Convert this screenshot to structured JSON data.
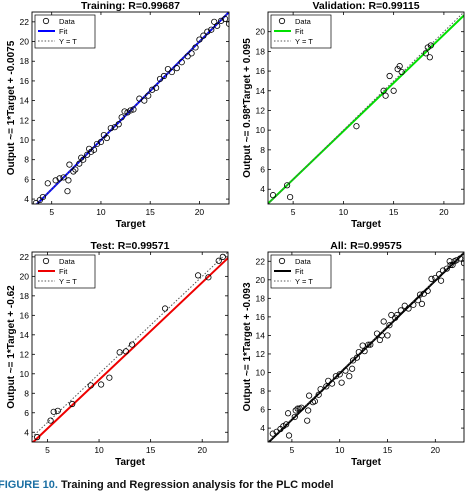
{
  "caption": {
    "label": "FIGURE 10.",
    "text": " Training and Regression analysis for the PLC model"
  },
  "chart_data": [
    {
      "type": "scatter",
      "title": "Training: R=0.99687",
      "xlabel": "Target",
      "ylabel": "Output ~= 1*Target + -0.0075",
      "xlim": [
        3,
        23
      ],
      "ylim": [
        3.5,
        23
      ],
      "xticks": [
        5,
        10,
        15,
        20
      ],
      "yticks": [
        4,
        6,
        8,
        10,
        12,
        14,
        16,
        18,
        20,
        22
      ],
      "fit": {
        "slope": 1,
        "intercept": -0.0075,
        "color": "#0000ff"
      },
      "legend": [
        "Data",
        "Fit",
        "Y = T"
      ],
      "legend_position": "top-left",
      "points": [
        [
          3.4,
          3.6
        ],
        [
          3.8,
          3.9
        ],
        [
          4.1,
          4.2
        ],
        [
          4.6,
          5.6
        ],
        [
          5.4,
          5.9
        ],
        [
          5.8,
          6.1
        ],
        [
          6.2,
          6.2
        ],
        [
          6.6,
          4.8
        ],
        [
          6.7,
          5.9
        ],
        [
          6.8,
          7.5
        ],
        [
          7.2,
          6.8
        ],
        [
          7.4,
          7.0
        ],
        [
          7.8,
          7.6
        ],
        [
          8.0,
          8.2
        ],
        [
          8.2,
          8.0
        ],
        [
          8.6,
          8.5
        ],
        [
          8.8,
          9.1
        ],
        [
          9.0,
          8.8
        ],
        [
          9.3,
          9.0
        ],
        [
          9.6,
          9.6
        ],
        [
          10.0,
          9.8
        ],
        [
          10.3,
          10.5
        ],
        [
          10.6,
          10.2
        ],
        [
          11.0,
          11.2
        ],
        [
          11.4,
          11.3
        ],
        [
          11.8,
          11.6
        ],
        [
          12.1,
          12.3
        ],
        [
          12.4,
          12.9
        ],
        [
          12.7,
          12.8
        ],
        [
          13.0,
          13.0
        ],
        [
          13.3,
          13.1
        ],
        [
          13.9,
          14.2
        ],
        [
          14.4,
          14.0
        ],
        [
          14.8,
          14.5
        ],
        [
          15.2,
          15.1
        ],
        [
          15.6,
          15.3
        ],
        [
          16.0,
          16.2
        ],
        [
          16.4,
          16.5
        ],
        [
          16.8,
          17.2
        ],
        [
          17.2,
          16.9
        ],
        [
          17.7,
          17.3
        ],
        [
          18.2,
          17.9
        ],
        [
          18.8,
          18.5
        ],
        [
          19.2,
          18.8
        ],
        [
          19.6,
          19.4
        ],
        [
          20.0,
          20.2
        ],
        [
          20.4,
          20.6
        ],
        [
          20.8,
          21.0
        ],
        [
          21.2,
          21.2
        ],
        [
          21.5,
          22.0
        ],
        [
          21.8,
          21.6
        ],
        [
          22.2,
          22.1
        ],
        [
          22.6,
          22.3
        ],
        [
          23.0,
          21.8
        ]
      ]
    },
    {
      "type": "scatter",
      "title": "Validation: R=0.99115",
      "xlabel": "Target",
      "ylabel": "Output ~= 0.98*Target + 0.095",
      "xlim": [
        2.5,
        22
      ],
      "ylim": [
        2.5,
        22
      ],
      "xticks": [
        5,
        10,
        15,
        20
      ],
      "yticks": [
        4,
        6,
        8,
        10,
        12,
        14,
        16,
        18,
        20
      ],
      "fit": {
        "slope": 0.98,
        "intercept": 0.095,
        "color": "#00e000"
      },
      "legend": [
        "Data",
        "Fit",
        "Y = T"
      ],
      "legend_position": "top-left",
      "points": [
        [
          3.0,
          3.4
        ],
        [
          4.4,
          4.4
        ],
        [
          4.7,
          3.2
        ],
        [
          11.3,
          10.4
        ],
        [
          14.0,
          14.0
        ],
        [
          14.2,
          13.5
        ],
        [
          14.6,
          15.5
        ],
        [
          15.0,
          14.0
        ],
        [
          15.4,
          16.2
        ],
        [
          15.6,
          16.5
        ],
        [
          15.8,
          15.9
        ],
        [
          18.2,
          17.8
        ],
        [
          18.4,
          18.4
        ],
        [
          18.7,
          18.6
        ],
        [
          18.6,
          17.4
        ]
      ]
    },
    {
      "type": "scatter",
      "title": "Test: R=0.99571",
      "xlabel": "Target",
      "ylabel": "Output ~= 1*Target + -0.62",
      "xlim": [
        3.5,
        22.5
      ],
      "ylim": [
        3,
        22.5
      ],
      "xticks": [
        5,
        10,
        15,
        20
      ],
      "yticks": [
        4,
        6,
        8,
        10,
        12,
        14,
        16,
        18,
        20,
        22
      ],
      "fit": {
        "slope": 1,
        "intercept": -0.62,
        "color": "#ee0000"
      },
      "legend": [
        "Data",
        "Fit",
        "Y = T"
      ],
      "legend_position": "top-left",
      "points": [
        [
          4.0,
          3.5
        ],
        [
          5.3,
          5.2
        ],
        [
          5.6,
          6.1
        ],
        [
          6.0,
          6.2
        ],
        [
          7.4,
          6.9
        ],
        [
          9.2,
          8.8
        ],
        [
          10.2,
          8.9
        ],
        [
          11.0,
          9.6
        ],
        [
          12.0,
          12.2
        ],
        [
          12.6,
          12.3
        ],
        [
          13.2,
          13.0
        ],
        [
          16.4,
          16.7
        ],
        [
          19.6,
          20.1
        ],
        [
          20.6,
          19.9
        ],
        [
          21.6,
          21.6
        ],
        [
          22.0,
          22.0
        ]
      ]
    },
    {
      "type": "scatter",
      "title": "All: R=0.99575",
      "xlabel": "Target",
      "ylabel": "Output ~= 1*Target + -0.093",
      "xlim": [
        2.5,
        23
      ],
      "ylim": [
        2.5,
        23
      ],
      "xticks": [
        5,
        10,
        15,
        20
      ],
      "yticks": [
        4,
        6,
        8,
        10,
        12,
        14,
        16,
        18,
        20,
        22
      ],
      "fit": {
        "slope": 1,
        "intercept": -0.093,
        "color": "#000000"
      },
      "legend": [
        "Data",
        "Fit",
        "Y = T"
      ],
      "legend_position": "top-left",
      "points": [
        [
          3.0,
          3.4
        ],
        [
          3.4,
          3.6
        ],
        [
          3.8,
          3.9
        ],
        [
          4.1,
          4.2
        ],
        [
          4.4,
          4.4
        ],
        [
          4.6,
          5.6
        ],
        [
          4.7,
          3.2
        ],
        [
          5.3,
          5.2
        ],
        [
          5.4,
          5.9
        ],
        [
          5.6,
          6.1
        ],
        [
          5.8,
          6.1
        ],
        [
          6.0,
          6.2
        ],
        [
          6.6,
          4.8
        ],
        [
          6.7,
          5.9
        ],
        [
          6.8,
          7.5
        ],
        [
          7.2,
          6.8
        ],
        [
          7.4,
          6.9
        ],
        [
          7.8,
          7.6
        ],
        [
          8.0,
          8.2
        ],
        [
          8.6,
          8.5
        ],
        [
          8.8,
          9.1
        ],
        [
          9.2,
          8.8
        ],
        [
          9.6,
          9.6
        ],
        [
          10.0,
          9.8
        ],
        [
          10.2,
          8.9
        ],
        [
          10.6,
          10.2
        ],
        [
          11.0,
          9.6
        ],
        [
          11.3,
          10.4
        ],
        [
          11.4,
          11.3
        ],
        [
          11.8,
          11.6
        ],
        [
          12.0,
          12.2
        ],
        [
          12.4,
          12.9
        ],
        [
          12.6,
          12.3
        ],
        [
          13.0,
          13.0
        ],
        [
          13.2,
          13.0
        ],
        [
          13.9,
          14.2
        ],
        [
          14.2,
          13.5
        ],
        [
          14.4,
          14.0
        ],
        [
          14.6,
          15.5
        ],
        [
          15.0,
          14.0
        ],
        [
          15.2,
          15.1
        ],
        [
          15.4,
          16.2
        ],
        [
          15.8,
          15.9
        ],
        [
          16.0,
          16.2
        ],
        [
          16.4,
          16.7
        ],
        [
          16.8,
          17.2
        ],
        [
          17.2,
          16.9
        ],
        [
          17.7,
          17.3
        ],
        [
          18.2,
          17.8
        ],
        [
          18.4,
          18.4
        ],
        [
          18.6,
          17.4
        ],
        [
          18.8,
          18.5
        ],
        [
          19.2,
          18.8
        ],
        [
          19.6,
          20.1
        ],
        [
          20.0,
          20.2
        ],
        [
          20.4,
          20.6
        ],
        [
          20.6,
          19.9
        ],
        [
          20.8,
          21.0
        ],
        [
          21.2,
          21.2
        ],
        [
          21.5,
          22.0
        ],
        [
          21.6,
          21.6
        ],
        [
          21.8,
          21.6
        ],
        [
          22.0,
          22.0
        ],
        [
          22.2,
          22.1
        ],
        [
          22.6,
          22.3
        ],
        [
          23.0,
          21.8
        ]
      ]
    }
  ]
}
